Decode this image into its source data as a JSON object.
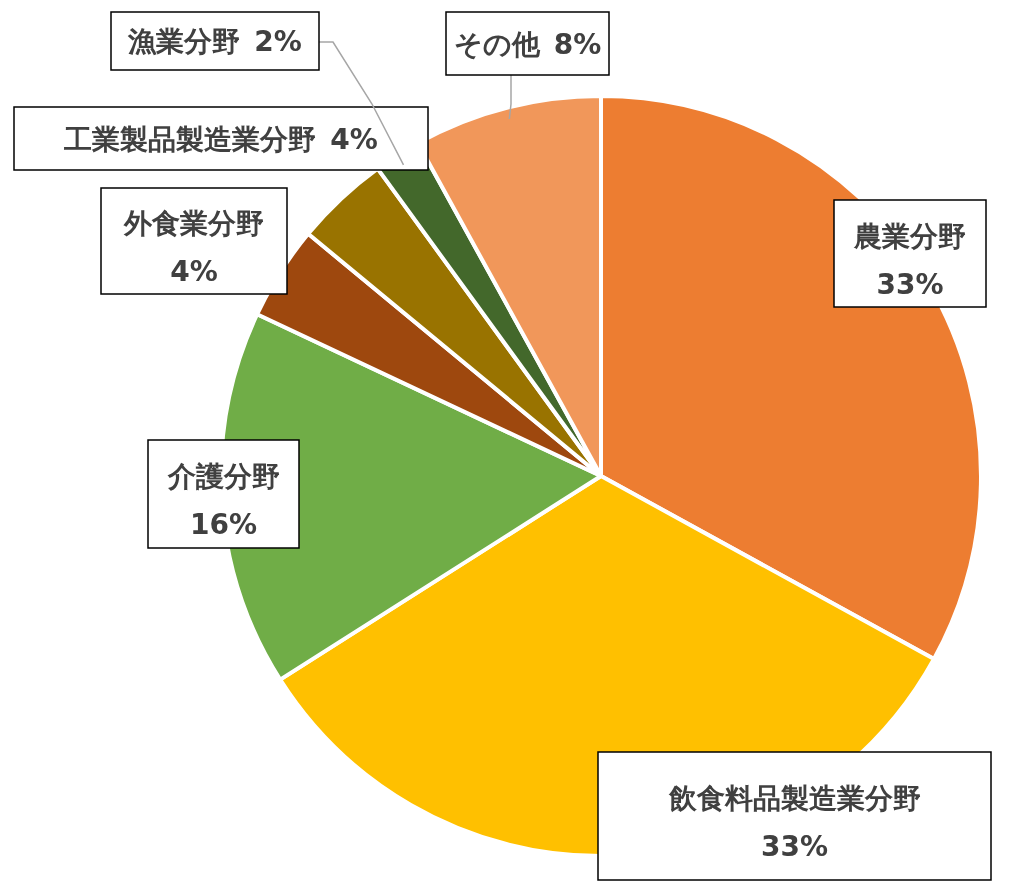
{
  "chart_data": {
    "type": "pie",
    "categories": [
      "農業分野",
      "飲食料品製造業分野",
      "介護分野",
      "外食業分野",
      "工業製品製造業分野",
      "漁業分野",
      "その他"
    ],
    "values": [
      33,
      33,
      16,
      4,
      4,
      2,
      8
    ],
    "value_labels": [
      "33%",
      "33%",
      "16%",
      "4%",
      "4%",
      "2%",
      "8%"
    ],
    "colors": [
      "#ed7d31",
      "#ffc000",
      "#70ad47",
      "#9e480e",
      "#997300",
      "#43682b",
      "#f1975a"
    ]
  }
}
